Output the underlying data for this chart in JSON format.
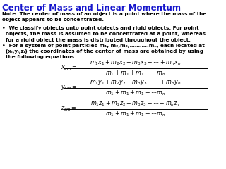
{
  "title": "Center of Mass and Linear Momentum",
  "title_color": "#1616cc",
  "bg_color": "#ffffff",
  "title_fontsize": 8.5,
  "body_fontsize": 5.2,
  "note_text": "Note: The center of mass of an object is a point where the mass of the\nobject appears to be concentrated.",
  "bullet1": "We classify objects onto point objects and rigid objects. For point\n  objects, the mass is assumed to be concentrated at a point, whereas\n  for a rigid object the mass is distributed throughout the object.",
  "bullet2": "For a system of point particles m₁, m₂,m₃,………..mₙ, each located at\n  (xᵢ,yᵢ,zᵢ) the coordinates of the center of mass are obtained by using\n  the following equations.",
  "eq_xcm_num": "$m_1x_1 + m_2x_2 + m_3x_3 + \\cdots + m_nx_n$",
  "eq_xcm_den": "$m_1 + m_1 + m_1 + \\cdots m_n$",
  "eq_xcm_lhs": "$x_{cm} =$",
  "eq_ycm_num": "$m_1y_1 + m_2y_2 + m_3y_3 + \\cdots + m_ny_n$",
  "eq_ycm_den": "$m_1 + m_1 + m_1 + \\cdots m_n$",
  "eq_ycm_lhs": "$y_{cm} =$",
  "eq_zcm_num": "$m_1z_1 + m_2z_2 + m_3z_3 + \\cdots + m_nz_n$",
  "eq_zcm_den": "$m_1 + m_1 + m_1 + \\cdots m_n$",
  "eq_zcm_lhs": "$z_{cm} =$",
  "eq_fontsize": 5.8,
  "text_color": "#000000",
  "figwidth": 3.2,
  "figheight": 2.4,
  "dpi": 100
}
